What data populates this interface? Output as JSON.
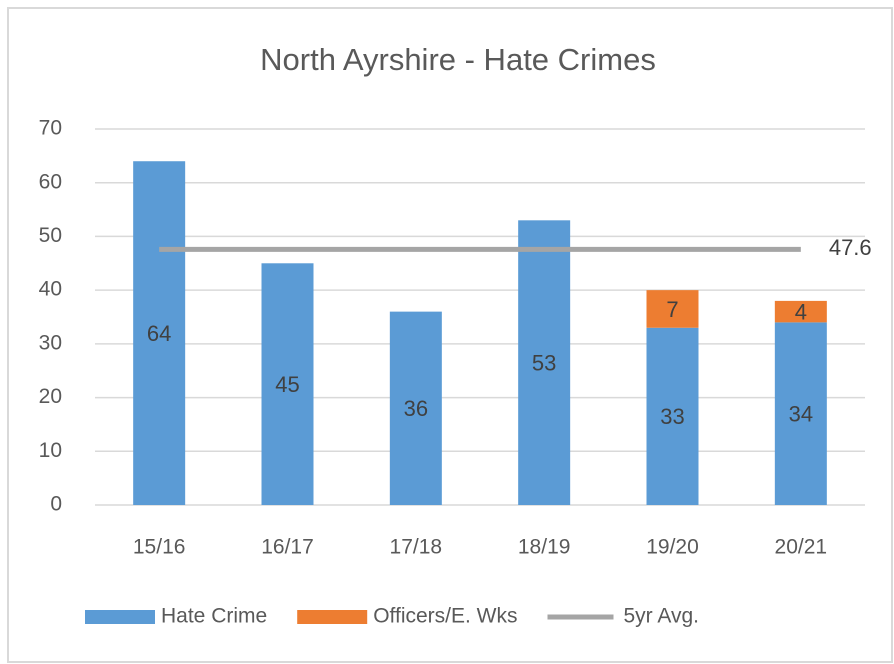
{
  "chart_data": {
    "type": "bar",
    "stacked": true,
    "title": "North  Ayrshire - Hate Crimes",
    "categories": [
      "15/16",
      "16/17",
      "17/18",
      "18/19",
      "19/20",
      "20/21"
    ],
    "series": [
      {
        "name": "Hate Crime",
        "color": "#5b9bd5",
        "type": "bar",
        "values": [
          64,
          45,
          36,
          53,
          33,
          34
        ]
      },
      {
        "name": "Officers/E. Wks",
        "color": "#ed7d31",
        "type": "bar",
        "values": [
          null,
          null,
          null,
          null,
          7,
          4
        ]
      },
      {
        "name": "5yr Avg.",
        "color": "#a5a5a5",
        "type": "line",
        "values": [
          47.6,
          47.6,
          47.6,
          47.6,
          47.6,
          47.6
        ]
      }
    ],
    "ylim": [
      0,
      70
    ],
    "yticks": [
      0,
      10,
      20,
      30,
      40,
      50,
      60,
      70
    ],
    "grid": true,
    "legend": "bottom"
  }
}
